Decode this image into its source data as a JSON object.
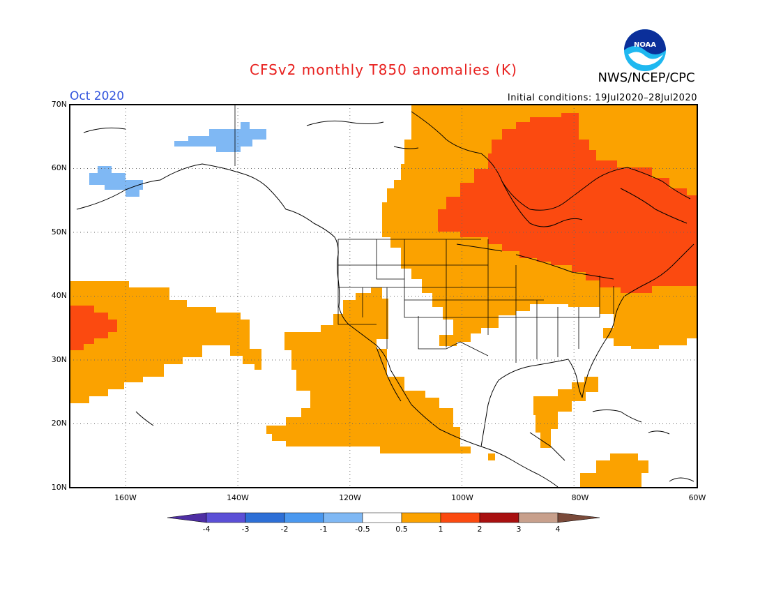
{
  "header": {
    "title": "CFSv2 monthly T850 anomalies (K)",
    "agency": "NWS/NCEP/CPC",
    "month": "Oct 2020",
    "initial_conditions": "Initial conditions: 19Jul2020–28Jul2020",
    "logo_text": "NOAA"
  },
  "map": {
    "lon_range": [
      -172,
      -60
    ],
    "lat_range": [
      10,
      70
    ],
    "y_ticks": [
      "70N",
      "60N",
      "50N",
      "40N",
      "30N",
      "20N",
      "10N"
    ],
    "x_ticks": [
      "160W",
      "140W",
      "120W",
      "100W",
      "80W",
      "60W"
    ]
  },
  "colorbar": {
    "labels": [
      "-4",
      "-3",
      "-2",
      "-1",
      "-0.5",
      "0.5",
      "1",
      "2",
      "3",
      "4"
    ],
    "colors": [
      "#4e2ea3",
      "#5b4fd6",
      "#2d6fd6",
      "#4a98ef",
      "#7fb8f4",
      "#ffffff",
      "#fba200",
      "#fb4a10",
      "#a81010",
      "#c8a08c",
      "#7a4a3a"
    ]
  },
  "anomaly_colors": {
    "positive_0_5_to_1": "#fba200",
    "positive_1_to_2": "#fb4a10",
    "negative_0_5_to_1": "#7fb8f4"
  }
}
